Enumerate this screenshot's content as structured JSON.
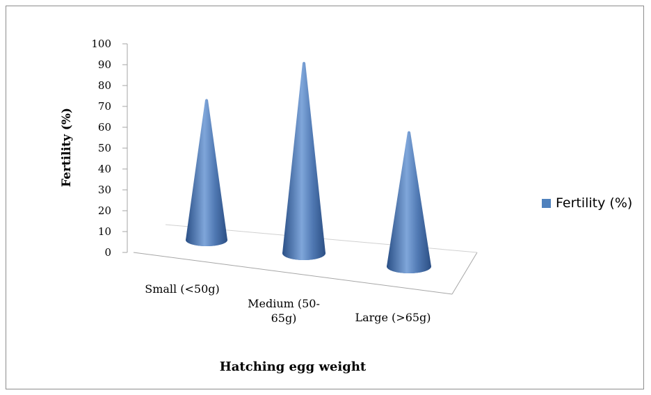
{
  "chart_data": {
    "type": "bar",
    "subtype": "3d-cone",
    "title": "",
    "xlabel": "Hatching egg weight",
    "ylabel": "Fertility (%)",
    "ylim": [
      0,
      100
    ],
    "yticks": [
      "0",
      "10",
      "20",
      "30",
      "40",
      "50",
      "60",
      "70",
      "80",
      "90",
      "100"
    ],
    "categories": [
      [
        "Small (<50g)"
      ],
      [
        "Medium (50-",
        "65g)"
      ],
      [
        "Large (>65g)"
      ]
    ],
    "series": [
      {
        "name": "Fertility (%)",
        "values": [
          72,
          92,
          61
        ]
      }
    ],
    "legend_position": "right",
    "grid": false,
    "colors": {
      "series": "#4f81bd",
      "axis": "#a6a6a6",
      "frame": "#8c8c8c"
    }
  }
}
